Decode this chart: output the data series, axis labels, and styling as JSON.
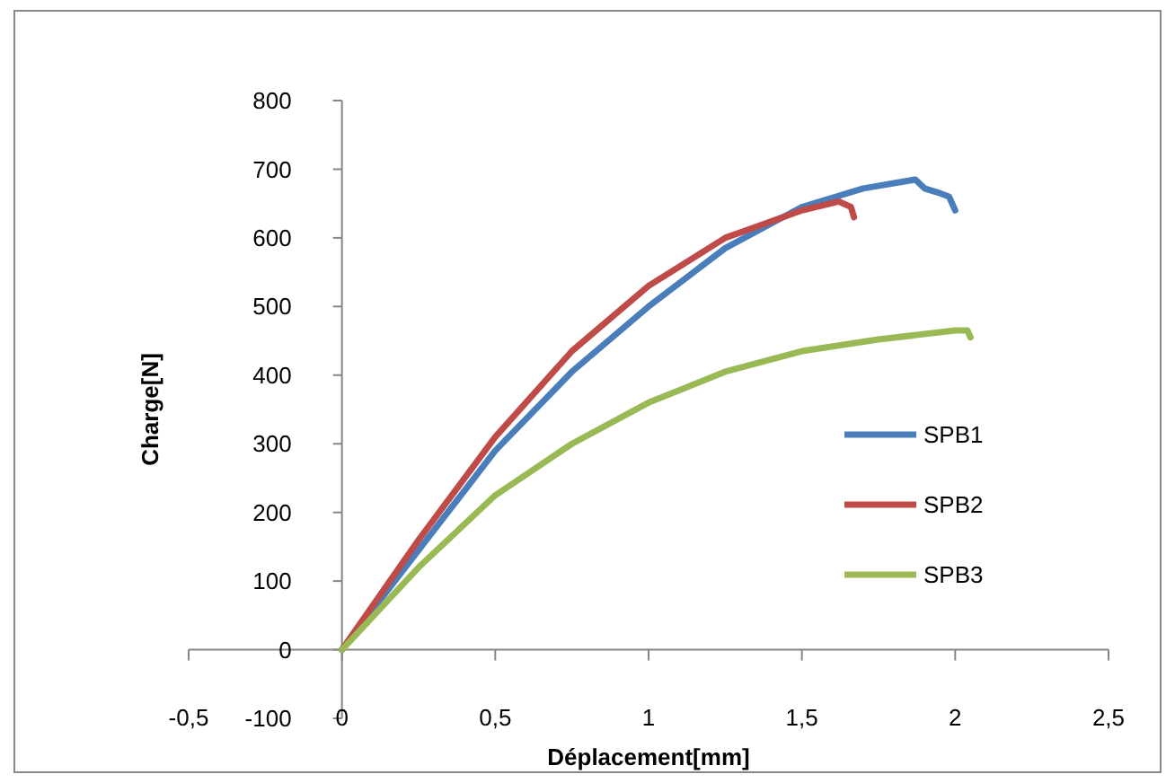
{
  "chart_data": {
    "type": "line",
    "xlabel": "Déplacement[mm]",
    "ylabel": "Charge[N]",
    "xlim": [
      -0.5,
      2.5
    ],
    "xticks": [
      {
        "value": -0.5,
        "label": "-0,5"
      },
      0,
      {
        "value": 0.5,
        "label": "0,5"
      },
      1,
      {
        "value": 1.5,
        "label": "1,5"
      },
      2,
      {
        "value": 2.5,
        "label": "2,5"
      }
    ],
    "ylim": [
      -100,
      800
    ],
    "yticks": [
      -100,
      0,
      100,
      200,
      300,
      400,
      500,
      600,
      700,
      800
    ],
    "grid": false,
    "legend": "right",
    "marker": "none",
    "line_style": "solid",
    "series": [
      {
        "name": "SPB1",
        "color": "#4a7ebb",
        "x": [
          0,
          0.25,
          0.5,
          0.75,
          1,
          1.25,
          1.5,
          1.7,
          1.87,
          1.9,
          1.95,
          1.98,
          2.0
        ],
        "values": [
          0,
          145,
          290,
          405,
          500,
          585,
          645,
          672,
          685,
          672,
          665,
          660,
          640
        ]
      },
      {
        "name": "SPB2",
        "color": "#be4b48",
        "x": [
          0,
          0.25,
          0.5,
          0.75,
          1,
          1.25,
          1.5,
          1.62,
          1.66,
          1.67
        ],
        "values": [
          0,
          160,
          310,
          435,
          530,
          600,
          640,
          653,
          645,
          630
        ]
      },
      {
        "name": "SPB3",
        "color": "#98b954",
        "x": [
          0,
          0.25,
          0.5,
          0.75,
          1,
          1.25,
          1.5,
          1.75,
          2,
          2.04,
          2.05
        ],
        "values": [
          0,
          120,
          225,
          300,
          360,
          405,
          435,
          452,
          465,
          465,
          455
        ]
      }
    ]
  }
}
